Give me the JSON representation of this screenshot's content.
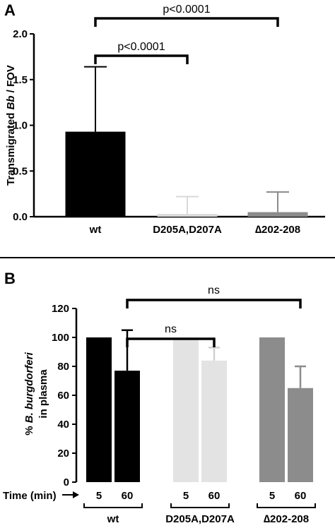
{
  "chart_data": [
    {
      "type": "bar",
      "panel": "A",
      "ylabel": [
        "Transmigrated ",
        "Bb",
        " / FOV"
      ],
      "ylim": [
        0,
        2.0
      ],
      "yticks": [
        "0.0",
        "0.5",
        "1.0",
        "1.5",
        "2.0"
      ],
      "categories": [
        "wt",
        "D205A,D207A",
        "∆202-208"
      ],
      "values": [
        0.93,
        0.03,
        0.05
      ],
      "error": [
        0.71,
        0.19,
        0.22
      ],
      "colors": [
        "#000000",
        "#d9d9d9",
        "#8c8c8c"
      ],
      "significance": [
        {
          "from": 0,
          "to": 1,
          "label": "p<0.0001"
        },
        {
          "from": 0,
          "to": 2,
          "label": "p<0.0001"
        }
      ]
    },
    {
      "type": "bar",
      "panel": "B",
      "ylabel": [
        "% ",
        "B. burgdorferi",
        "in plasma"
      ],
      "ylim": [
        0,
        120
      ],
      "yticks": [
        "0",
        "20",
        "40",
        "60",
        "80",
        "100",
        "120"
      ],
      "x_prefix": "Time (min)",
      "groups": [
        {
          "name": "wt",
          "color": "#000000",
          "times": [
            "5",
            "60"
          ],
          "values": [
            100,
            77
          ],
          "error": [
            0,
            28
          ]
        },
        {
          "name": "D205A,D207A",
          "color": "#e3e3e3",
          "times": [
            "5",
            "60"
          ],
          "values": [
            100,
            84
          ],
          "error": [
            0,
            9
          ]
        },
        {
          "name": "∆202-208",
          "color": "#8c8c8c",
          "times": [
            "5",
            "60"
          ],
          "values": [
            100,
            65
          ],
          "error": [
            0,
            15
          ]
        }
      ],
      "significance": [
        {
          "from_group": 0,
          "to_group": 1,
          "label": "ns"
        },
        {
          "from_group": 0,
          "to_group": 2,
          "label": "ns"
        }
      ]
    }
  ]
}
